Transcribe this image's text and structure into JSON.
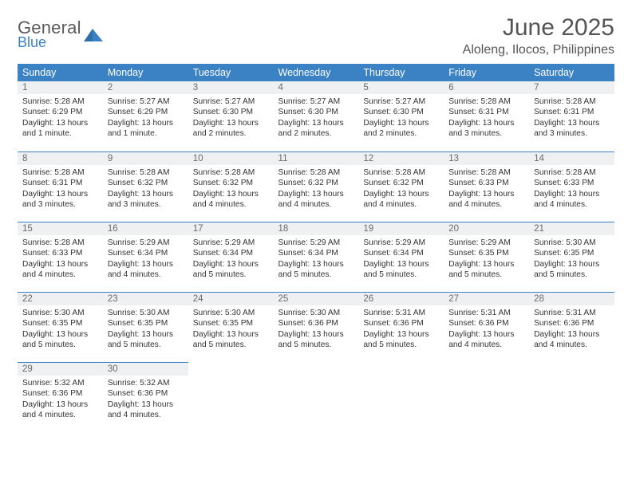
{
  "brand": {
    "word": "General",
    "sub": "Blue"
  },
  "title": "June 2025",
  "location": "Aloleng, Ilocos, Philippines",
  "colors": {
    "header_bg": "#3b82c4",
    "header_text": "#ffffff",
    "daynum_bg": "#eef0f1",
    "daynum_text": "#6a6a6a",
    "body_text": "#333333",
    "page_bg": "#ffffff",
    "rule": "#3b82c4",
    "logo_gray": "#5b5b5b",
    "logo_blue": "#3b82c4"
  },
  "typography": {
    "month_title_pt": 30,
    "location_pt": 16,
    "weekday_header_pt": 12.5,
    "daynum_pt": 11.5,
    "body_pt": 10.2,
    "font_family": "Arial"
  },
  "calendar": {
    "weekdays": [
      "Sunday",
      "Monday",
      "Tuesday",
      "Wednesday",
      "Thursday",
      "Friday",
      "Saturday"
    ],
    "weeks": [
      [
        {
          "day": 1,
          "sunrise": "5:28 AM",
          "sunset": "6:29 PM",
          "daylight": "13 hours and 1 minute."
        },
        {
          "day": 2,
          "sunrise": "5:27 AM",
          "sunset": "6:29 PM",
          "daylight": "13 hours and 1 minute."
        },
        {
          "day": 3,
          "sunrise": "5:27 AM",
          "sunset": "6:30 PM",
          "daylight": "13 hours and 2 minutes."
        },
        {
          "day": 4,
          "sunrise": "5:27 AM",
          "sunset": "6:30 PM",
          "daylight": "13 hours and 2 minutes."
        },
        {
          "day": 5,
          "sunrise": "5:27 AM",
          "sunset": "6:30 PM",
          "daylight": "13 hours and 2 minutes."
        },
        {
          "day": 6,
          "sunrise": "5:28 AM",
          "sunset": "6:31 PM",
          "daylight": "13 hours and 3 minutes."
        },
        {
          "day": 7,
          "sunrise": "5:28 AM",
          "sunset": "6:31 PM",
          "daylight": "13 hours and 3 minutes."
        }
      ],
      [
        {
          "day": 8,
          "sunrise": "5:28 AM",
          "sunset": "6:31 PM",
          "daylight": "13 hours and 3 minutes."
        },
        {
          "day": 9,
          "sunrise": "5:28 AM",
          "sunset": "6:32 PM",
          "daylight": "13 hours and 3 minutes."
        },
        {
          "day": 10,
          "sunrise": "5:28 AM",
          "sunset": "6:32 PM",
          "daylight": "13 hours and 4 minutes."
        },
        {
          "day": 11,
          "sunrise": "5:28 AM",
          "sunset": "6:32 PM",
          "daylight": "13 hours and 4 minutes."
        },
        {
          "day": 12,
          "sunrise": "5:28 AM",
          "sunset": "6:32 PM",
          "daylight": "13 hours and 4 minutes."
        },
        {
          "day": 13,
          "sunrise": "5:28 AM",
          "sunset": "6:33 PM",
          "daylight": "13 hours and 4 minutes."
        },
        {
          "day": 14,
          "sunrise": "5:28 AM",
          "sunset": "6:33 PM",
          "daylight": "13 hours and 4 minutes."
        }
      ],
      [
        {
          "day": 15,
          "sunrise": "5:28 AM",
          "sunset": "6:33 PM",
          "daylight": "13 hours and 4 minutes."
        },
        {
          "day": 16,
          "sunrise": "5:29 AM",
          "sunset": "6:34 PM",
          "daylight": "13 hours and 4 minutes."
        },
        {
          "day": 17,
          "sunrise": "5:29 AM",
          "sunset": "6:34 PM",
          "daylight": "13 hours and 5 minutes."
        },
        {
          "day": 18,
          "sunrise": "5:29 AM",
          "sunset": "6:34 PM",
          "daylight": "13 hours and 5 minutes."
        },
        {
          "day": 19,
          "sunrise": "5:29 AM",
          "sunset": "6:34 PM",
          "daylight": "13 hours and 5 minutes."
        },
        {
          "day": 20,
          "sunrise": "5:29 AM",
          "sunset": "6:35 PM",
          "daylight": "13 hours and 5 minutes."
        },
        {
          "day": 21,
          "sunrise": "5:30 AM",
          "sunset": "6:35 PM",
          "daylight": "13 hours and 5 minutes."
        }
      ],
      [
        {
          "day": 22,
          "sunrise": "5:30 AM",
          "sunset": "6:35 PM",
          "daylight": "13 hours and 5 minutes."
        },
        {
          "day": 23,
          "sunrise": "5:30 AM",
          "sunset": "6:35 PM",
          "daylight": "13 hours and 5 minutes."
        },
        {
          "day": 24,
          "sunrise": "5:30 AM",
          "sunset": "6:35 PM",
          "daylight": "13 hours and 5 minutes."
        },
        {
          "day": 25,
          "sunrise": "5:30 AM",
          "sunset": "6:36 PM",
          "daylight": "13 hours and 5 minutes."
        },
        {
          "day": 26,
          "sunrise": "5:31 AM",
          "sunset": "6:36 PM",
          "daylight": "13 hours and 5 minutes."
        },
        {
          "day": 27,
          "sunrise": "5:31 AM",
          "sunset": "6:36 PM",
          "daylight": "13 hours and 4 minutes."
        },
        {
          "day": 28,
          "sunrise": "5:31 AM",
          "sunset": "6:36 PM",
          "daylight": "13 hours and 4 minutes."
        }
      ],
      [
        {
          "day": 29,
          "sunrise": "5:32 AM",
          "sunset": "6:36 PM",
          "daylight": "13 hours and 4 minutes."
        },
        {
          "day": 30,
          "sunrise": "5:32 AM",
          "sunset": "6:36 PM",
          "daylight": "13 hours and 4 minutes."
        },
        null,
        null,
        null,
        null,
        null
      ]
    ]
  },
  "labels": {
    "sunrise": "Sunrise:",
    "sunset": "Sunset:",
    "daylight": "Daylight:"
  }
}
